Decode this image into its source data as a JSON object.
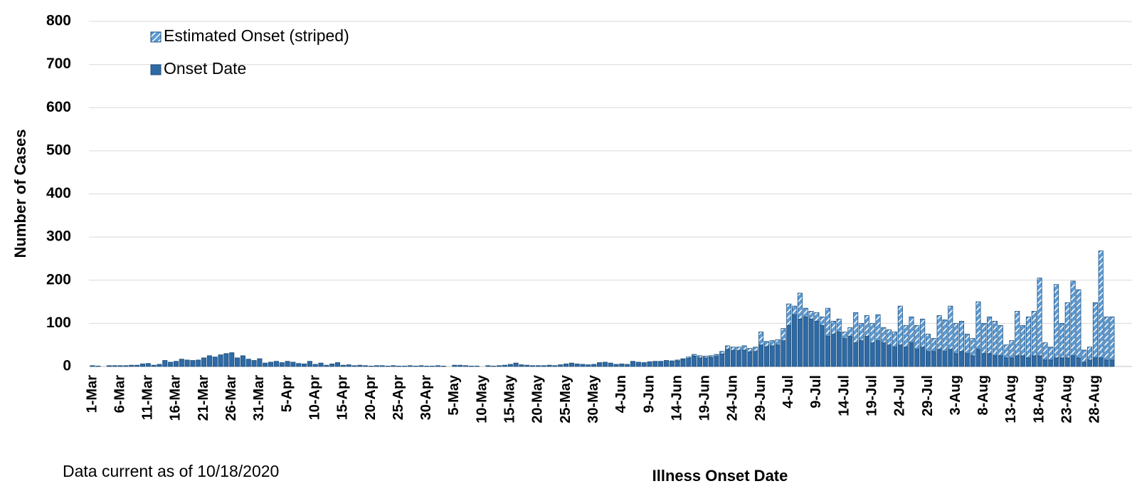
{
  "chart_data": {
    "type": "bar",
    "stacked": true,
    "x_label": "Illness Onset Date",
    "y_label": "Number of Cases",
    "note": "Data current as of 10/18/2020",
    "legend": "top-left",
    "grid": true,
    "ylim": [
      0,
      800
    ],
    "yticks": [
      0,
      100,
      200,
      300,
      400,
      500,
      600,
      700,
      800
    ],
    "categories": [
      "1-Mar",
      null,
      null,
      null,
      null,
      "6-Mar",
      null,
      null,
      null,
      null,
      "11-Mar",
      null,
      null,
      null,
      null,
      "16-Mar",
      null,
      null,
      null,
      null,
      "21-Mar",
      null,
      null,
      null,
      null,
      "26-Mar",
      null,
      null,
      null,
      null,
      "31-Mar",
      null,
      null,
      null,
      null,
      "5-Apr",
      null,
      null,
      null,
      null,
      "10-Apr",
      null,
      null,
      null,
      null,
      "15-Apr",
      null,
      null,
      null,
      null,
      "20-Apr",
      null,
      null,
      null,
      null,
      "25-Apr",
      null,
      null,
      null,
      null,
      "30-Apr",
      null,
      null,
      null,
      null,
      "5-May",
      null,
      null,
      null,
      null,
      "10-May",
      null,
      null,
      null,
      null,
      "15-May",
      null,
      null,
      null,
      null,
      "20-May",
      null,
      null,
      null,
      null,
      "25-May",
      null,
      null,
      null,
      null,
      "30-May",
      null,
      null,
      null,
      null,
      "4-Jun",
      null,
      null,
      null,
      null,
      "9-Jun",
      null,
      null,
      null,
      null,
      "14-Jun",
      null,
      null,
      null,
      null,
      "19-Jun",
      null,
      null,
      null,
      null,
      "24-Jun",
      null,
      null,
      null,
      null,
      "29-Jun",
      null,
      null,
      null,
      null,
      "4-Jul",
      null,
      null,
      null,
      null,
      "9-Jul",
      null,
      null,
      null,
      null,
      "14-Jul",
      null,
      null,
      null,
      null,
      "19-Jul",
      null,
      null,
      null,
      null,
      "24-Jul",
      null,
      null,
      null,
      null,
      "29-Jul",
      null,
      null,
      null,
      null,
      "3-Aug",
      null,
      null,
      null,
      null,
      "8-Aug",
      null,
      null,
      null,
      null,
      "13-Aug",
      null,
      null,
      null,
      null,
      "18-Aug",
      null,
      null,
      null,
      null,
      "23-Aug",
      null,
      null,
      null,
      null,
      "28-Aug",
      null,
      null,
      null
    ],
    "series": [
      {
        "name": "Onset Date",
        "color": "#2e6aa6",
        "hatch": false,
        "values": [
          2,
          1,
          0,
          2,
          2,
          2,
          2,
          3,
          3,
          6,
          7,
          3,
          5,
          14,
          10,
          12,
          17,
          15,
          14,
          15,
          20,
          25,
          22,
          27,
          30,
          32,
          20,
          25,
          17,
          14,
          18,
          8,
          10,
          12,
          9,
          12,
          10,
          7,
          6,
          12,
          5,
          8,
          3,
          6,
          9,
          3,
          4,
          2,
          3,
          2,
          1,
          2,
          2,
          1,
          2,
          1,
          1,
          2,
          1,
          2,
          1,
          1,
          2,
          1,
          0,
          3,
          3,
          2,
          1,
          1,
          0,
          2,
          1,
          2,
          3,
          5,
          8,
          4,
          3,
          2,
          2,
          2,
          3,
          2,
          4,
          6,
          8,
          6,
          5,
          4,
          5,
          9,
          10,
          8,
          5,
          6,
          5,
          12,
          10,
          9,
          11,
          12,
          12,
          14,
          13,
          13,
          16,
          19,
          24,
          20,
          20,
          21,
          23,
          29,
          40,
          37,
          37,
          38,
          34,
          35,
          50,
          46,
          48,
          50,
          60,
          95,
          120,
          110,
          115,
          110,
          105,
          95,
          70,
          75,
          80,
          65,
          70,
          55,
          60,
          70,
          55,
          60,
          55,
          50,
          45,
          50,
          45,
          55,
          40,
          45,
          35,
          35,
          40,
          35,
          40,
          30,
          35,
          30,
          25,
          40,
          30,
          30,
          25,
          25,
          20,
          20,
          25,
          25,
          20,
          25,
          25,
          15,
          15,
          20,
          20,
          20,
          25,
          20,
          10,
          15,
          20,
          20,
          15,
          15
        ]
      },
      {
        "name": "Estimated Onset (striped)",
        "color": "#5b9bd5",
        "hatch": true,
        "values": [
          0,
          0,
          0,
          0,
          0,
          0,
          0,
          0,
          0,
          0,
          0,
          0,
          0,
          0,
          0,
          0,
          0,
          0,
          0,
          0,
          0,
          0,
          0,
          0,
          0,
          0,
          0,
          0,
          0,
          0,
          0,
          0,
          0,
          0,
          0,
          0,
          0,
          0,
          0,
          0,
          0,
          0,
          0,
          0,
          0,
          0,
          0,
          0,
          0,
          0,
          0,
          0,
          0,
          0,
          0,
          0,
          0,
          0,
          0,
          0,
          0,
          0,
          0,
          0,
          0,
          0,
          0,
          0,
          0,
          0,
          0,
          0,
          0,
          0,
          0,
          0,
          0,
          0,
          0,
          0,
          0,
          0,
          0,
          0,
          0,
          0,
          0,
          0,
          0,
          0,
          0,
          0,
          0,
          0,
          0,
          0,
          0,
          0,
          0,
          0,
          0,
          0,
          0,
          0,
          0,
          2,
          2,
          3,
          4,
          5,
          4,
          4,
          5,
          6,
          8,
          8,
          8,
          10,
          8,
          10,
          30,
          12,
          12,
          12,
          28,
          50,
          20,
          60,
          20,
          18,
          20,
          20,
          65,
          30,
          30,
          15,
          20,
          70,
          40,
          48,
          45,
          60,
          35,
          35,
          35,
          90,
          50,
          60,
          55,
          65,
          40,
          30,
          78,
          73,
          100,
          70,
          70,
          45,
          40,
          110,
          70,
          85,
          80,
          70,
          30,
          40,
          103,
          70,
          95,
          103,
          180,
          40,
          30,
          170,
          80,
          128,
          173,
          158,
          28,
          30,
          128,
          248,
          100,
          100
        ]
      }
    ]
  }
}
